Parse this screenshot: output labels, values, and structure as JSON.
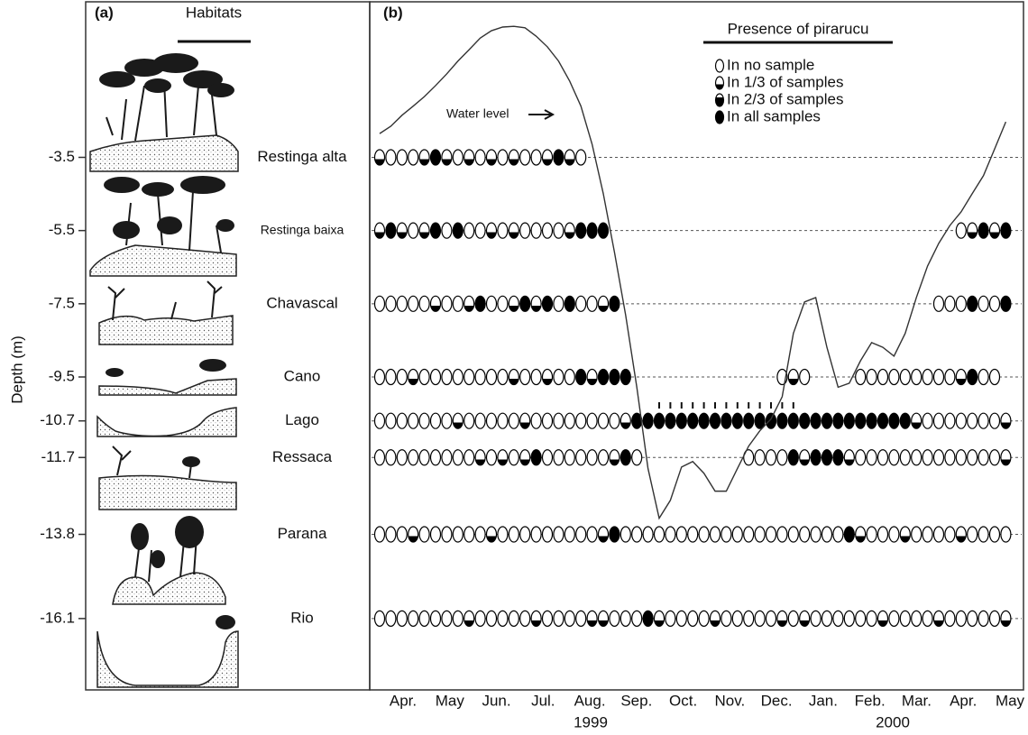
{
  "chart_data": {
    "type": "dot-matrix",
    "panel_labels": [
      "(a)",
      "(b)"
    ],
    "habitats_title": "Habitats",
    "legend_title": "Presence of pirarucu",
    "legend": [
      "In no sample",
      "In 1/3 of samples",
      "In 2/3 of samples",
      "In all samples"
    ],
    "y_label": "Depth (m)",
    "ylim": [
      0.75,
      -18.05
    ],
    "yticks": [
      -3.5,
      -5.5,
      -7.5,
      -9.5,
      -10.7,
      -11.7,
      -13.8,
      -16.1
    ],
    "habitats": [
      "Restinga alta",
      "Restinga baixa",
      "Chavascal",
      "Cano",
      "Lago",
      "Ressaca",
      "Parana",
      "Rio"
    ],
    "categories": [
      "Apr.",
      "May",
      "Jun.",
      "Jul.",
      "Aug.",
      "Sep.",
      "Oct.",
      "Nov.",
      "Dec.",
      "Jan.",
      "Feb.",
      "Mar.",
      "Apr.",
      "May"
    ],
    "years": [
      "1999",
      "2000"
    ],
    "presence": [
      [
        1,
        0,
        0,
        0,
        1,
        3,
        1,
        0,
        1,
        0,
        1,
        0,
        1,
        0,
        0,
        1,
        3,
        1,
        0,
        null,
        null,
        null,
        null,
        null,
        null,
        null,
        null,
        null,
        null,
        null,
        null,
        null,
        null,
        null,
        null,
        null,
        null,
        null,
        null,
        null,
        null,
        null,
        null,
        null,
        null,
        null,
        null,
        null,
        null,
        null,
        null,
        null,
        null,
        null,
        null,
        null,
        null
      ],
      [
        1,
        3,
        1,
        0,
        1,
        3,
        0,
        3,
        0,
        0,
        1,
        0,
        1,
        0,
        0,
        0,
        0,
        1,
        3,
        3,
        3,
        null,
        null,
        null,
        null,
        null,
        null,
        null,
        null,
        null,
        null,
        null,
        null,
        null,
        null,
        null,
        null,
        null,
        null,
        null,
        null,
        null,
        null,
        null,
        null,
        null,
        null,
        null,
        null,
        null,
        null,
        null,
        0,
        1,
        3,
        1,
        3
      ],
      [
        0,
        0,
        0,
        0,
        0,
        1,
        0,
        0,
        1,
        3,
        0,
        0,
        1,
        3,
        1,
        3,
        0,
        3,
        0,
        0,
        1,
        3,
        null,
        null,
        null,
        null,
        null,
        null,
        null,
        null,
        null,
        null,
        null,
        null,
        null,
        null,
        null,
        null,
        null,
        null,
        null,
        null,
        null,
        null,
        null,
        null,
        null,
        null,
        null,
        null,
        0,
        0,
        0,
        3,
        0,
        0,
        3
      ],
      [
        0,
        0,
        0,
        1,
        0,
        0,
        0,
        0,
        0,
        0,
        0,
        0,
        1,
        0,
        0,
        1,
        0,
        0,
        3,
        1,
        3,
        3,
        3,
        null,
        null,
        null,
        null,
        null,
        null,
        null,
        null,
        null,
        null,
        null,
        null,
        null,
        0,
        1,
        0,
        null,
        null,
        null,
        null,
        0,
        0,
        0,
        0,
        0,
        0,
        0,
        0,
        0,
        1,
        3,
        0,
        0
      ],
      [
        0,
        0,
        0,
        0,
        0,
        0,
        0,
        1,
        0,
        0,
        0,
        0,
        0,
        1,
        0,
        0,
        0,
        0,
        0,
        0,
        0,
        0,
        1,
        3,
        3,
        3,
        3,
        3,
        3,
        3,
        3,
        3,
        3,
        3,
        3,
        3,
        3,
        3,
        3,
        3,
        3,
        3,
        3,
        3,
        3,
        3,
        3,
        3,
        1,
        0,
        0,
        0,
        0,
        0,
        0,
        0,
        1
      ],
      [
        0,
        0,
        0,
        0,
        0,
        0,
        0,
        0,
        0,
        1,
        0,
        1,
        0,
        1,
        3,
        0,
        0,
        0,
        0,
        0,
        0,
        1,
        3,
        0,
        null,
        null,
        null,
        null,
        null,
        null,
        null,
        null,
        null,
        0,
        0,
        0,
        0,
        3,
        1,
        3,
        3,
        3,
        1,
        0,
        0,
        0,
        0,
        0,
        0,
        0,
        0,
        0,
        0,
        0,
        0,
        0,
        1
      ],
      [
        0,
        0,
        0,
        1,
        0,
        0,
        0,
        0,
        0,
        0,
        1,
        0,
        0,
        0,
        0,
        0,
        0,
        0,
        0,
        0,
        1,
        3,
        0,
        0,
        0,
        0,
        0,
        0,
        0,
        0,
        0,
        0,
        0,
        0,
        0,
        0,
        0,
        0,
        0,
        0,
        0,
        0,
        3,
        1,
        0,
        0,
        0,
        1,
        0,
        0,
        0,
        0,
        1,
        0,
        0,
        0,
        0
      ],
      [
        0,
        0,
        0,
        0,
        0,
        0,
        0,
        0,
        1,
        0,
        0,
        0,
        0,
        0,
        1,
        0,
        0,
        0,
        0,
        1,
        1,
        0,
        0,
        0,
        3,
        1,
        0,
        0,
        0,
        0,
        1,
        0,
        0,
        0,
        0,
        0,
        1,
        0,
        1,
        0,
        0,
        0,
        0,
        0,
        0,
        1,
        0,
        0,
        0,
        0,
        1,
        0,
        0,
        0,
        0,
        0,
        1
      ]
    ],
    "water_level": {
      "label": "Water level",
      "color": "#333333",
      "values": [
        -2.85,
        -2.65,
        -2.35,
        -2.1,
        -1.84,
        -1.54,
        -1.22,
        -0.87,
        -0.56,
        -0.24,
        -0.04,
        0.06,
        0.08,
        0.04,
        -0.19,
        -0.48,
        -0.87,
        -1.42,
        -2.1,
        -3.14,
        -4.49,
        -6.09,
        -7.81,
        -9.78,
        -12.0,
        -13.36,
        -12.87,
        -11.96,
        -11.81,
        -12.13,
        -12.62,
        -12.62,
        -12.0,
        -11.39,
        -10.97,
        -10.65,
        -10.04,
        -8.31,
        -7.45,
        -7.33,
        -8.69,
        -9.78,
        -9.67,
        -9.06,
        -8.56,
        -8.69,
        -8.93,
        -8.31,
        -7.33,
        -6.47,
        -5.85,
        -5.36,
        -4.99,
        -4.49,
        -4.0,
        -3.27,
        -2.53
      ]
    }
  }
}
